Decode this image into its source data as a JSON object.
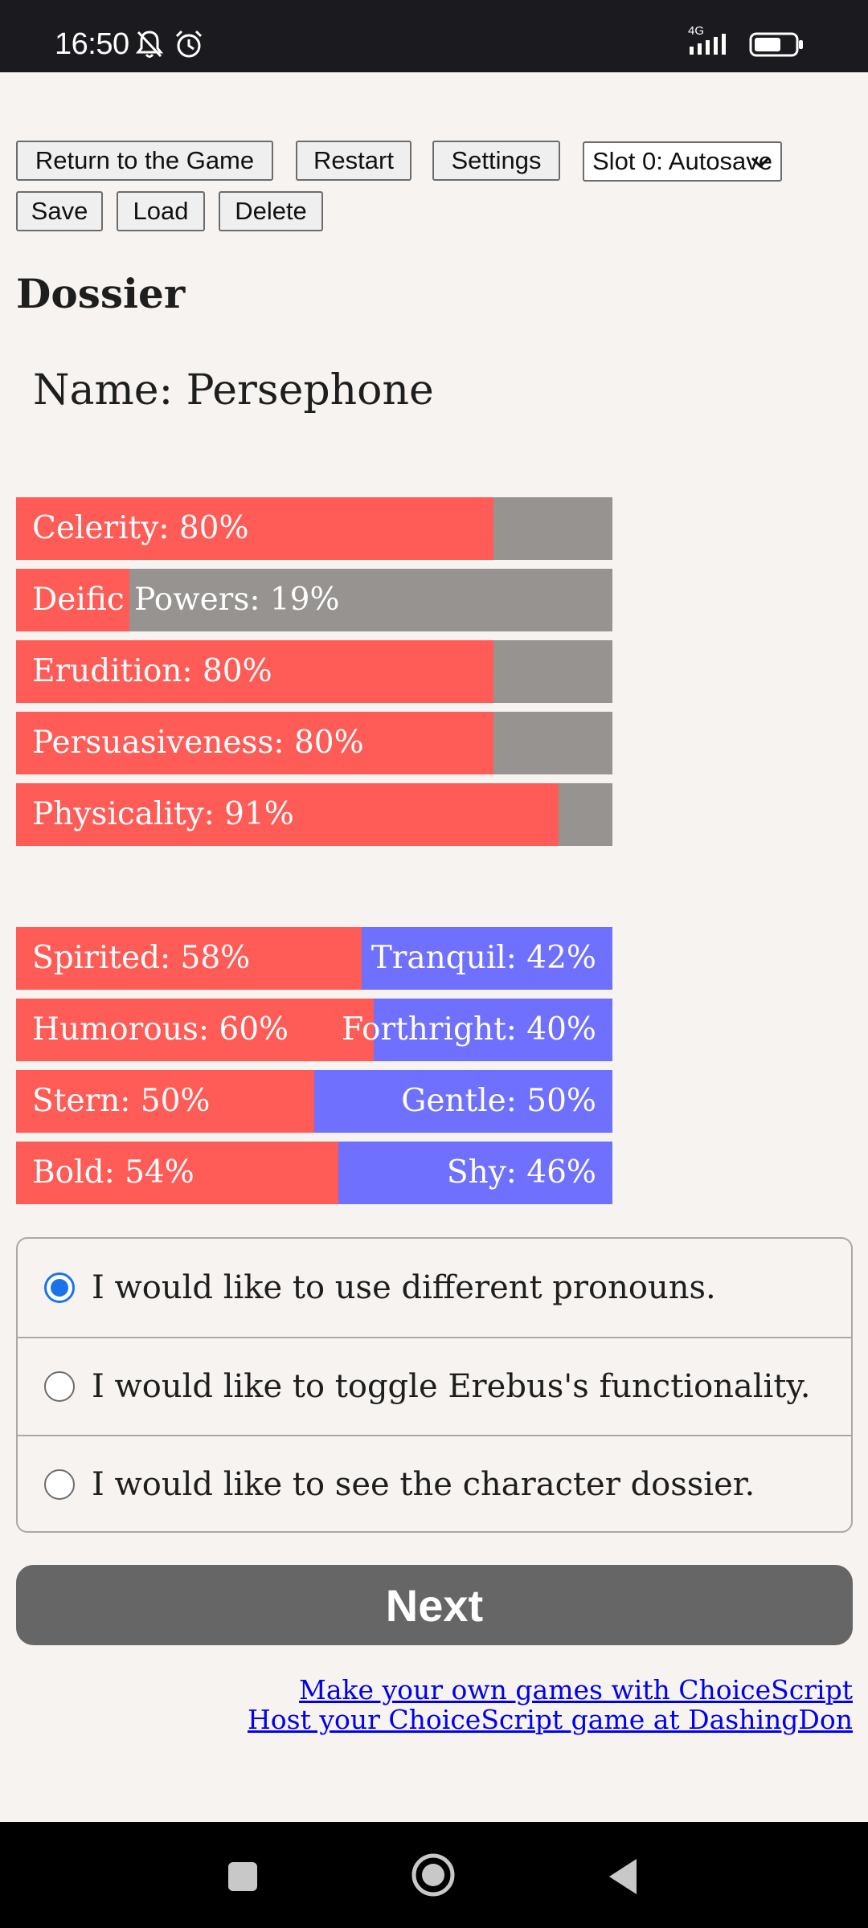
{
  "status_bar": {
    "time": "16:50",
    "network": "4G",
    "icons": [
      "bell-off-icon",
      "alarm-icon",
      "signal-icon",
      "battery-icon"
    ]
  },
  "toolbar": {
    "return_label": "Return to the Game",
    "restart_label": "Restart",
    "settings_label": "Settings",
    "slot_value": "Slot 0: Autosave",
    "save_label": "Save",
    "load_label": "Load",
    "delete_label": "Delete"
  },
  "page": {
    "title": "Dossier",
    "name_line": "Name: Persephone"
  },
  "stats": [
    {
      "label": "Celerity: 80%",
      "value": 80
    },
    {
      "label": "Deific Powers: 19%",
      "value": 19
    },
    {
      "label": "Erudition: 80%",
      "value": 80
    },
    {
      "label": "Persuasiveness: 80%",
      "value": 80
    },
    {
      "label": "Physicality: 91%",
      "value": 91
    }
  ],
  "opposed_stats": [
    {
      "left_label": "Spirited: 58%",
      "right_label": "Tranquil: 42%",
      "value": 58
    },
    {
      "left_label": "Humorous: 60%",
      "right_label": "Forthright: 40%",
      "value": 60
    },
    {
      "left_label": "Stern: 50%",
      "right_label": "Gentle: 50%",
      "value": 50
    },
    {
      "left_label": "Bold: 54%",
      "right_label": "Shy: 46%",
      "value": 54
    }
  ],
  "choices": [
    {
      "text": "I would like to use different pronouns.",
      "selected": true
    },
    {
      "text": "I would like to toggle Erebus's functionality.",
      "selected": false
    },
    {
      "text": "I would like to see the character dossier.",
      "selected": false
    }
  ],
  "next_label": "Next",
  "links": {
    "choicescript": "Make your own games with ChoiceScript",
    "dashingdon": "Host your ChoiceScript game at DashingDon"
  },
  "colors": {
    "stat_fill": "#ff5c58",
    "stat_rest": "#969391",
    "opposed_right": "#7070ff",
    "radio_selected": "#1a73e8"
  }
}
